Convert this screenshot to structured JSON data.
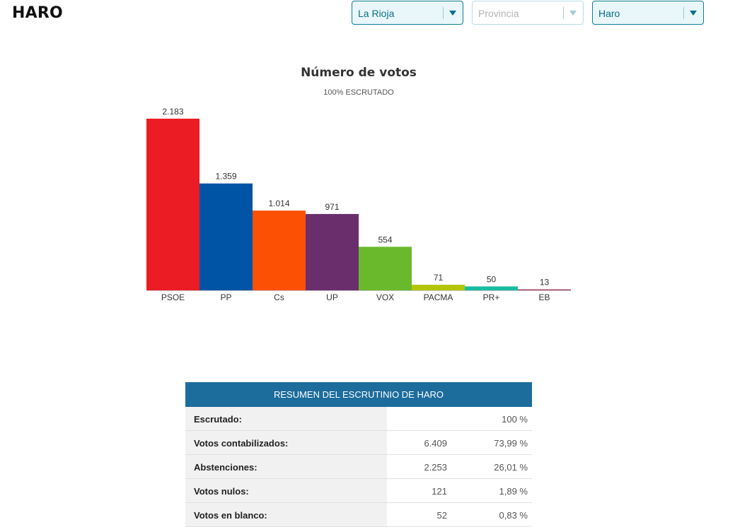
{
  "page": {
    "title": "HARO"
  },
  "filters": {
    "community": {
      "value": "La Rioja"
    },
    "province": {
      "placeholder": "Provincia"
    },
    "municipality": {
      "value": "Haro"
    }
  },
  "chart_data": {
    "type": "bar",
    "title": "Número de votos",
    "subtitle": "100% ESCRUTADO",
    "categories": [
      "PSOE",
      "PP",
      "Cs",
      "UP",
      "VOX",
      "PACMA",
      "PR+",
      "EB"
    ],
    "values": [
      2183,
      1359,
      1014,
      971,
      554,
      71,
      50,
      13
    ],
    "value_labels": [
      "2.183",
      "1.359",
      "1.014",
      "971",
      "554",
      "71",
      "50",
      "13"
    ],
    "colors": [
      "#ec1c24",
      "#0054a5",
      "#fc5005",
      "#6a2e6c",
      "#6ab92c",
      "#b3c50a",
      "#18bca0",
      "#a84466"
    ],
    "ylim": [
      0,
      2183
    ],
    "grid": false,
    "legend": "none"
  },
  "summary": {
    "header": "RESUMEN DEL ESCRUTINIO DE HARO",
    "rows": [
      {
        "label": "Escrutado:",
        "count": "",
        "pct": "100 %"
      },
      {
        "label": "Votos contabilizados:",
        "count": "6.409",
        "pct": "73,99 %"
      },
      {
        "label": "Abstenciones:",
        "count": "2.253",
        "pct": "26,01 %"
      },
      {
        "label": "Votos nulos:",
        "count": "121",
        "pct": "1,89 %"
      },
      {
        "label": "Votos en blanco:",
        "count": "52",
        "pct": "0,83 %"
      }
    ]
  }
}
